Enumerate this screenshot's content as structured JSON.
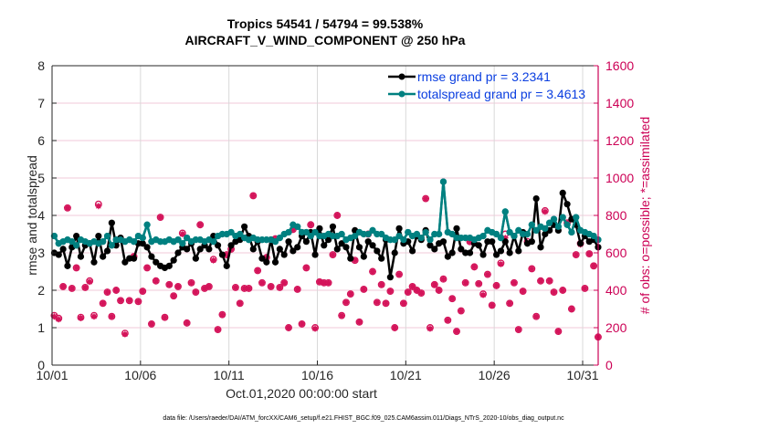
{
  "chart_data": {
    "type": "line",
    "title": "Tropics 54541 / 54794 = 99.538%",
    "subtitle": "AIRCRAFT_V_WIND_COMPONENT @ 250 hPa",
    "xlabel": "Oct.01,2020 00:00:00 start",
    "ylabel": "rmse and totalspread",
    "ylabel_right": "# of obs: o=possible; *=assimilated",
    "footer": "data file: /Users/raeder/DAI/ATM_forcXX/CAM6_setup/f.e21.FHIST_BGC.f09_025.CAM6assim.011/Diags_NTrS_2020-10/obs_diag_output.nc",
    "x_ticks": [
      "10/01",
      "10/06",
      "10/11",
      "10/16",
      "10/21",
      "10/26",
      "10/31"
    ],
    "x_tick_days": [
      0,
      5,
      10,
      15,
      20,
      25,
      30
    ],
    "xlim_days": [
      0,
      30.9
    ],
    "ylim": [
      0,
      8
    ],
    "y_ticks": [
      0,
      1,
      2,
      3,
      4,
      5,
      6,
      7,
      8
    ],
    "ylim_right": [
      0,
      1600
    ],
    "y_ticks_right": [
      0,
      200,
      400,
      600,
      800,
      1000,
      1200,
      1400,
      1600
    ],
    "grid": true,
    "legend_position": "top-right",
    "colors": {
      "rmse": "#000000",
      "totalspread": "#008080",
      "obs": "#d4145a",
      "right_axis": "#cc0055",
      "legend_text": "#0a3ee0",
      "grid_h": "#f2c8d8",
      "grid_v": "#d9d9d9"
    },
    "series": [
      {
        "name": "rmse grand pr = 3.2341",
        "axis": "left",
        "x_step_days": 0.25,
        "values": [
          3.0,
          2.95,
          3.1,
          2.65,
          3.15,
          3.45,
          2.9,
          3.2,
          3.25,
          2.75,
          3.45,
          2.9,
          3.05,
          3.8,
          3.2,
          3.4,
          2.75,
          2.85,
          2.85,
          3.25,
          3.25,
          3.15,
          2.9,
          2.75,
          2.65,
          2.6,
          2.65,
          2.8,
          3.0,
          3.15,
          3.1,
          3.25,
          2.85,
          3.1,
          3.2,
          3.1,
          3.45,
          3.2,
          2.95,
          2.65,
          3.2,
          3.3,
          3.35,
          3.7,
          3.45,
          3.1,
          3.3,
          2.85,
          2.75,
          3.35,
          2.75,
          3.1,
          2.95,
          3.3,
          3.05,
          3.15,
          3.45,
          3.3,
          3.55,
          2.95,
          3.65,
          3.2,
          3.35,
          3.7,
          3.1,
          3.25,
          3.15,
          2.85,
          3.6,
          3.15,
          2.9,
          3.3,
          3.2,
          3.05,
          2.85,
          3.35,
          2.35,
          3.0,
          3.65,
          3.25,
          3.3,
          3.05,
          3.45,
          3.35,
          3.6,
          3.2,
          3.1,
          3.25,
          3.3,
          2.9,
          3.0,
          3.65,
          3.1,
          3.0,
          3.0,
          3.25,
          3.2,
          2.95,
          3.3,
          3.3,
          2.95,
          3.05,
          3.3,
          3.0,
          3.45,
          3.05,
          3.55,
          3.25,
          3.3,
          4.45,
          3.15,
          3.5,
          3.6,
          3.75,
          3.6,
          4.6,
          4.3,
          3.9,
          3.75,
          3.25,
          3.45,
          3.3,
          3.35,
          3.15,
          3.0,
          2.85
        ]
      },
      {
        "name": "totalspread grand pr = 3.4613",
        "axis": "left",
        "x_step_days": 0.25,
        "values": [
          3.45,
          3.25,
          3.3,
          3.35,
          3.3,
          3.2,
          3.35,
          3.3,
          3.25,
          3.3,
          3.25,
          3.3,
          3.45,
          3.2,
          3.35,
          3.35,
          3.3,
          3.35,
          3.3,
          3.45,
          3.4,
          3.75,
          3.3,
          3.35,
          3.3,
          3.3,
          3.35,
          3.3,
          3.35,
          3.25,
          3.4,
          3.3,
          3.35,
          3.35,
          3.3,
          3.35,
          3.3,
          3.45,
          3.5,
          3.5,
          3.55,
          3.45,
          3.5,
          3.4,
          3.35,
          3.4,
          3.35,
          3.35,
          3.35,
          3.35,
          3.3,
          3.4,
          3.5,
          3.55,
          3.75,
          3.7,
          3.55,
          3.55,
          3.45,
          3.55,
          3.45,
          3.45,
          3.5,
          3.45,
          3.45,
          3.5,
          3.35,
          3.4,
          3.45,
          3.55,
          3.5,
          3.5,
          3.6,
          3.5,
          3.5,
          3.4,
          3.35,
          3.35,
          3.45,
          3.35,
          3.55,
          3.45,
          3.5,
          3.4,
          3.55,
          3.35,
          3.5,
          3.5,
          4.9,
          3.55,
          3.5,
          3.4,
          3.4,
          3.4,
          3.4,
          3.35,
          3.4,
          3.45,
          3.6,
          3.55,
          3.5,
          3.4,
          4.1,
          3.55,
          3.45,
          3.6,
          3.5,
          3.5,
          3.75,
          3.6,
          3.7,
          3.65,
          3.8,
          3.9,
          3.7,
          3.95,
          3.75,
          3.55,
          3.95,
          3.6,
          3.55,
          3.5,
          3.45,
          3.35,
          3.45,
          3.4
        ]
      },
      {
        "name": "obs assimilated",
        "axis": "right",
        "x_step_days": 0.25,
        "values": [
          260,
          245,
          420,
          840,
          410,
          520,
          252,
          415,
          445,
          260,
          850,
          330,
          390,
          260,
          400,
          345,
          165,
          345,
          580,
          340,
          395,
          520,
          220,
          450,
          790,
          255,
          430,
          370,
          420,
          700,
          225,
          440,
          390,
          750,
          410,
          420,
          560,
          190,
          270,
          590,
          620,
          415,
          330,
          410,
          410,
          905,
          505,
          440,
          575,
          420,
          675,
          415,
          440,
          200,
          725,
          405,
          220,
          520,
          750,
          195,
          445,
          440,
          440,
          590,
          800,
          265,
          335,
          380,
          560,
          230,
          405,
          700,
          500,
          335,
          430,
          330,
          395,
          200,
          485,
          330,
          390,
          420,
          400,
          385,
          890,
          195,
          430,
          400,
          460,
          240,
          355,
          180,
          290,
          440,
          660,
          525,
          435,
          375,
          485,
          320,
          425,
          540,
          680,
          330,
          440,
          190,
          395,
          655,
          515,
          260,
          450,
          820,
          450,
          390,
          180,
          400,
          760,
          300,
          590,
          645,
          410,
          595,
          530,
          150,
          330,
          700,
          330,
          880,
          265,
          230,
          470,
          510,
          415,
          160,
          0
        ]
      },
      {
        "name": "obs possible",
        "axis": "right",
        "x_step_days": 0.25,
        "values": [
          265,
          250,
          420,
          840,
          410,
          520,
          255,
          415,
          450,
          265,
          860,
          330,
          390,
          260,
          400,
          345,
          170,
          345,
          580,
          340,
          395,
          520,
          220,
          450,
          790,
          255,
          430,
          370,
          420,
          705,
          225,
          440,
          390,
          750,
          410,
          420,
          565,
          190,
          270,
          590,
          620,
          415,
          330,
          410,
          410,
          905,
          505,
          440,
          575,
          420,
          675,
          415,
          440,
          200,
          725,
          405,
          220,
          520,
          750,
          200,
          445,
          440,
          440,
          590,
          800,
          265,
          335,
          380,
          560,
          230,
          405,
          700,
          500,
          335,
          430,
          330,
          395,
          200,
          485,
          330,
          390,
          420,
          400,
          385,
          890,
          200,
          430,
          400,
          460,
          240,
          355,
          180,
          290,
          440,
          660,
          525,
          435,
          380,
          485,
          320,
          425,
          545,
          700,
          330,
          440,
          190,
          395,
          660,
          515,
          260,
          450,
          825,
          450,
          390,
          180,
          400,
          760,
          300,
          590,
          650,
          410,
          595,
          530,
          150,
          330,
          700,
          330,
          880,
          265,
          230,
          470,
          510,
          415,
          160,
          0
        ]
      }
    ],
    "legend": [
      {
        "label": "rmse grand pr = 3.2341",
        "color": "#000000"
      },
      {
        "label": "totalspread grand pr = 3.4613",
        "color": "#008080"
      }
    ]
  }
}
